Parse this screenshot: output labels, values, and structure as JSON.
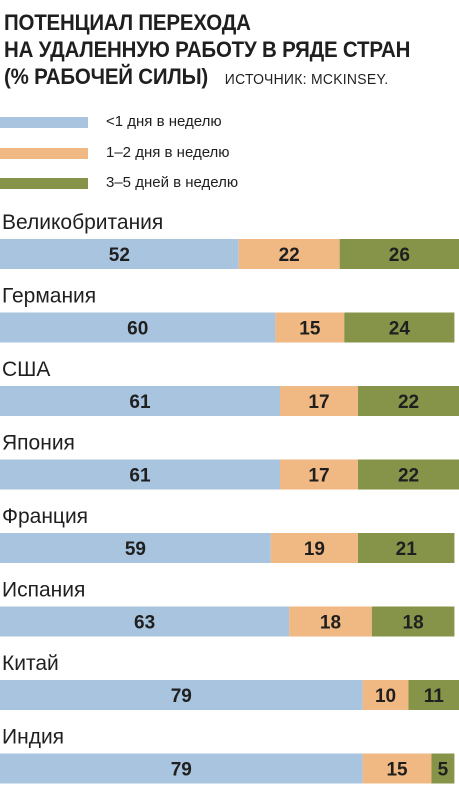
{
  "chart_data": {
    "type": "bar",
    "orientation": "horizontal",
    "stacked": true,
    "title": "ПОТЕНЦИАЛ ПЕРЕХОДА НА УДАЛЕННУЮ РАБОТУ В РЯДЕ СТРАН (% РАБОЧЕЙ СИЛЫ)",
    "title_lines": [
      "ПОТЕНЦИАЛ ПЕРЕХОДА",
      "НА УДАЛЕННУЮ РАБОТУ В РЯДЕ СТРАН",
      "(% РАБОЧЕЙ СИЛЫ)"
    ],
    "source": "ИСТОЧНИК: MCKINSEY.",
    "categories": [
      "Великобритания",
      "Германия",
      "США",
      "Япония",
      "Франция",
      "Испания",
      "Китай",
      "Индия"
    ],
    "series": [
      {
        "name": "<1  дня в неделю",
        "color": "#a9c4df",
        "values": [
          52,
          60,
          61,
          61,
          59,
          63,
          79,
          79
        ]
      },
      {
        "name": "1–2 дня в неделю",
        "color": "#f0b882",
        "values": [
          22,
          15,
          17,
          17,
          19,
          18,
          10,
          15
        ]
      },
      {
        "name": "3–5 дней в неделю",
        "color": "#86944a",
        "values": [
          26,
          24,
          22,
          22,
          21,
          18,
          11,
          5
        ]
      }
    ],
    "xlim": [
      0,
      100
    ],
    "legend_position": "top"
  }
}
